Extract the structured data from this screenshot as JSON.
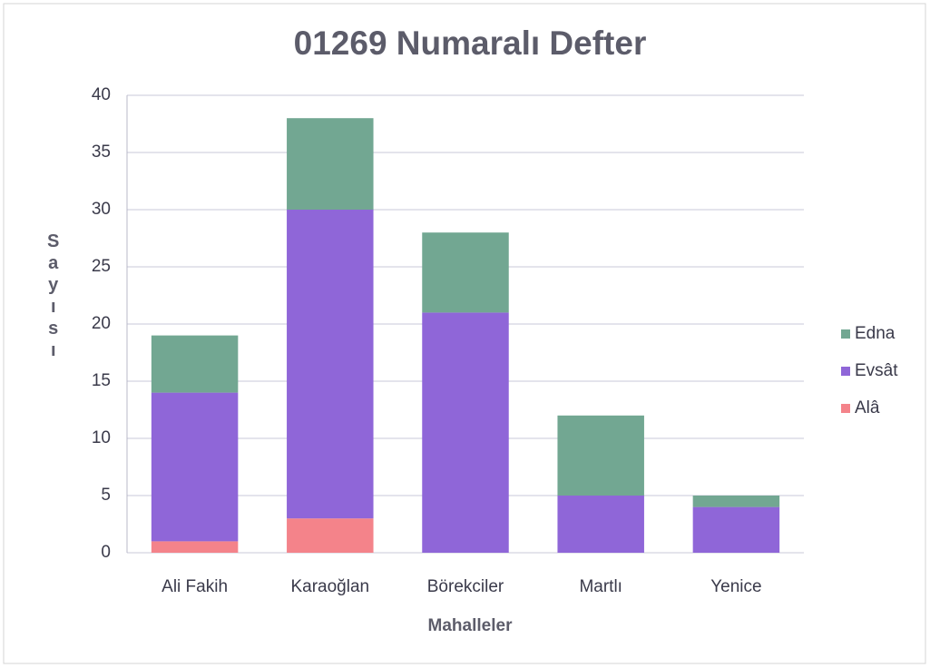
{
  "chart_data": {
    "type": "stacked_bar",
    "title": "01269 Numaralı Defter",
    "x_label": "Mahalleler",
    "y_label": "Sayısı",
    "categories": [
      "Ali Fakih",
      "Karaoğlan",
      "Börekciler",
      "Martlı",
      "Yenice"
    ],
    "series": [
      {
        "name": "Alâ",
        "color": "#f4838a",
        "values": [
          1,
          3,
          0,
          0,
          0
        ]
      },
      {
        "name": "Evsât",
        "color": "#8f66d8",
        "values": [
          13,
          27,
          21,
          5,
          4
        ]
      },
      {
        "name": "Edna",
        "color": "#72a792",
        "values": [
          5,
          8,
          7,
          7,
          1
        ]
      }
    ],
    "ylim": [
      0,
      40
    ],
    "yticks": [
      0,
      5,
      10,
      15,
      20,
      25,
      30,
      35,
      40
    ],
    "grid": true,
    "legend": "right"
  }
}
